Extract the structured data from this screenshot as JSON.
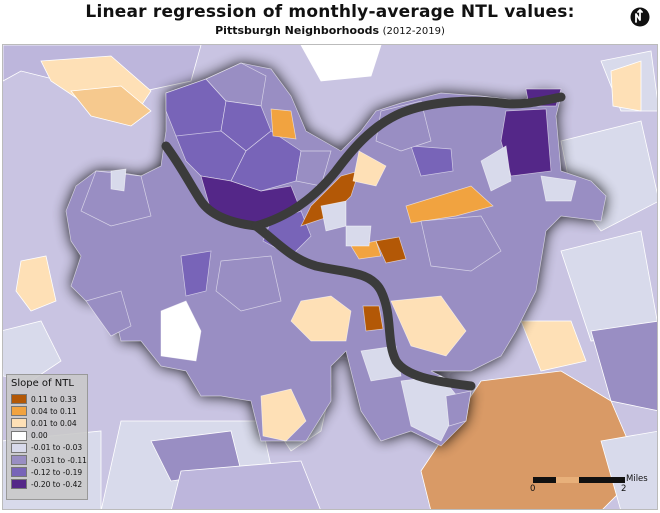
{
  "title": "Linear regression of monthly-average NTL values:",
  "subtitle": "Pittsburgh Neighborhoods",
  "years": "(2012-2019)",
  "north_arrow_icon": "north-arrow-icon",
  "legend": {
    "title": "Slope of NTL",
    "items": [
      {
        "label": "0.11 to 0.33",
        "color": "#b35806"
      },
      {
        "label": "0.04 to 0.11",
        "color": "#f1a340"
      },
      {
        "label": "0.01 to 0.04",
        "color": "#fee0b6"
      },
      {
        "label": "0.00",
        "color": "#ffffff"
      },
      {
        "label": "-0.01 to -0.03",
        "color": "#d8daeb"
      },
      {
        "label": "-0.031 to -0.11",
        "color": "#998ec3"
      },
      {
        "label": "-0.12 to -0.19",
        "color": "#7864b8"
      },
      {
        "label": "-0.20 to -0.42",
        "color": "#542788"
      }
    ]
  },
  "scale_bar": {
    "unit": "Miles",
    "tick_start": "0",
    "tick_end": "2"
  },
  "colors": {
    "background_region": "#c9c4e2",
    "river": "#3b3b3b",
    "city_halo": "#111111",
    "boundary": "#ffffff"
  }
}
